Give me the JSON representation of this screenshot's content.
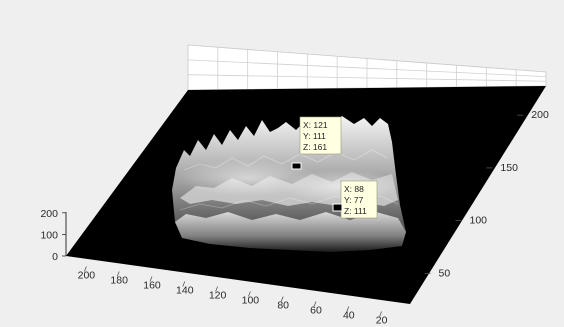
{
  "chart_data": {
    "type": "surface3d",
    "colormap": "gray",
    "background": "#000000",
    "grid": true,
    "axes": {
      "x": {
        "ticks": [
          20,
          40,
          60,
          80,
          100,
          120,
          140,
          160,
          180,
          200
        ],
        "range": [
          10,
          210
        ]
      },
      "y": {
        "ticks": [
          50,
          100,
          150,
          200
        ],
        "range": [
          20,
          240
        ]
      },
      "z": {
        "ticks": [
          0,
          100,
          200
        ],
        "range": [
          0,
          250
        ]
      }
    },
    "datatips": [
      {
        "x_label": "X: 121",
        "y_label": "Y: 111",
        "z_label": "Z: 161",
        "x": 121,
        "y": 111,
        "z": 161
      },
      {
        "x_label": "X: 88",
        "y_label": "Y: 77",
        "z_label": "Z: 111",
        "x": 88,
        "y": 77,
        "z": 111
      }
    ]
  }
}
